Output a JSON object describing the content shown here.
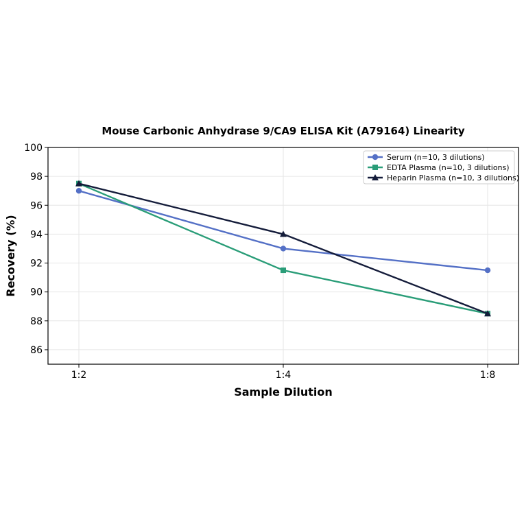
{
  "chart_data": {
    "type": "line",
    "title": "Mouse Carbonic Anhydrase 9/CA9 ELISA Kit (A79164) Linearity",
    "xlabel": "Sample Dilution",
    "ylabel": "Recovery (%)",
    "categories": [
      "1:2",
      "1:4",
      "1:8"
    ],
    "ylim": [
      85,
      100
    ],
    "yticks": [
      86,
      88,
      90,
      92,
      94,
      96,
      98,
      100
    ],
    "grid": true,
    "legend_position": "top-right",
    "series": [
      {
        "name": "Serum (n=10, 3 dilutions)",
        "values": [
          97.0,
          93.0,
          91.5
        ],
        "color": "#5470c6",
        "marker": "circle"
      },
      {
        "name": "EDTA Plasma (n=10, 3 dilutions)",
        "values": [
          97.5,
          91.5,
          88.5
        ],
        "color": "#2a9d78",
        "marker": "square"
      },
      {
        "name": "Heparin Plasma (n=10, 3 dilutions)",
        "values": [
          97.5,
          94.0,
          88.5
        ],
        "color": "#141c3a",
        "marker": "triangle"
      }
    ]
  }
}
